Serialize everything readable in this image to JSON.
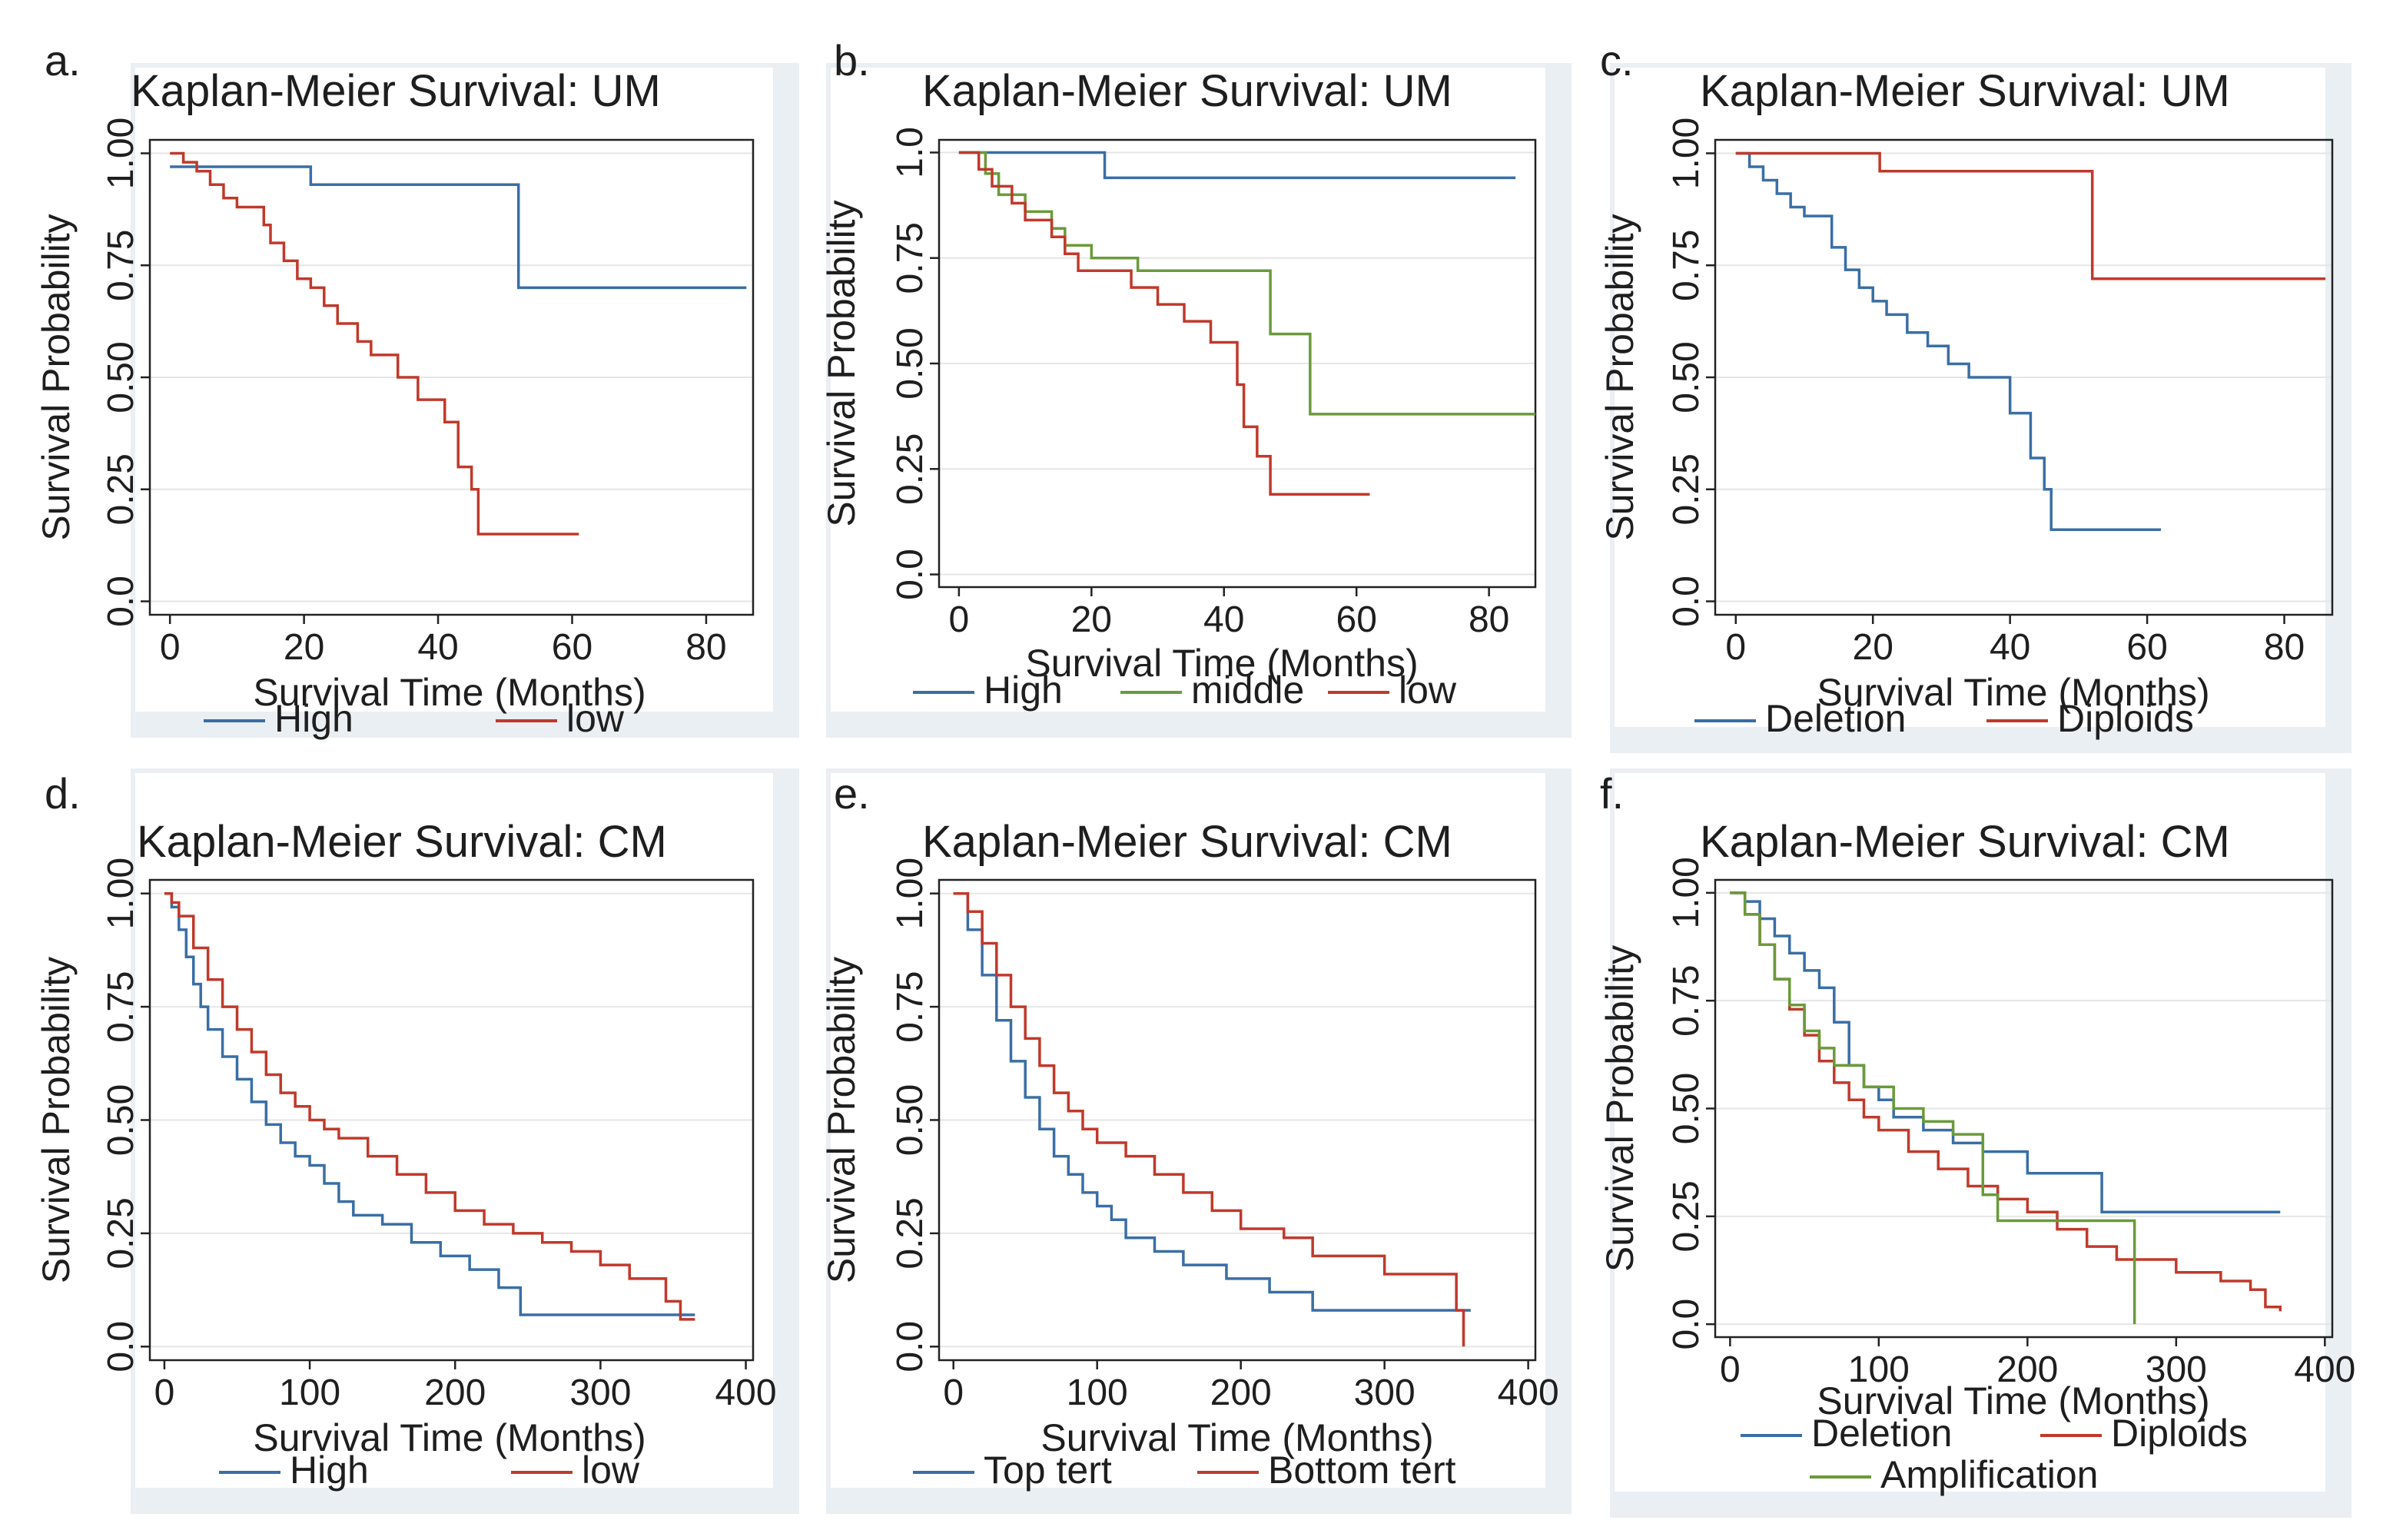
{
  "colors": {
    "blue": "#3a6ea5",
    "red": "#c0392b",
    "green": "#6a9a3a",
    "grid": "#e6e6e6",
    "axis": "#222222",
    "panel_bg": "#e9eff2"
  },
  "chart_data": [
    {
      "id": "a",
      "type": "line",
      "step": true,
      "letter": "a.",
      "title": "Kaplan-Meier Survival: UM",
      "xlabel": "Survival Time (Months)",
      "ylabel": "Survival Probability",
      "xlim": [
        -3,
        87
      ],
      "ylim": [
        -0.03,
        1.03
      ],
      "xticks": [
        0,
        20,
        40,
        60,
        80
      ],
      "xtick_labels": [
        "0",
        "20",
        "40",
        "60",
        "80"
      ],
      "yticks": [
        0,
        0.25,
        0.5,
        0.75,
        1.0
      ],
      "ytick_labels": [
        "0.0",
        "0.25",
        "0.50",
        "0.75",
        "1.00"
      ],
      "grid": true,
      "legend": [
        {
          "name": "High",
          "color": "#3a6ea5"
        },
        {
          "name": "low",
          "color": "#c0392b"
        }
      ],
      "series": [
        {
          "name": "High",
          "color": "#3a6ea5",
          "x": [
            0,
            21,
            52,
            86
          ],
          "y": [
            0.97,
            0.93,
            0.7,
            0.7
          ]
        },
        {
          "name": "low",
          "color": "#c0392b",
          "x": [
            0,
            2,
            4,
            6,
            8,
            10,
            12,
            14,
            15,
            17,
            19,
            21,
            23,
            25,
            28,
            30,
            34,
            37,
            41,
            43,
            45,
            46,
            61
          ],
          "y": [
            1.0,
            0.98,
            0.96,
            0.93,
            0.9,
            0.88,
            0.88,
            0.84,
            0.8,
            0.76,
            0.72,
            0.7,
            0.66,
            0.62,
            0.58,
            0.55,
            0.5,
            0.45,
            0.4,
            0.3,
            0.25,
            0.15,
            0.15
          ]
        }
      ]
    },
    {
      "id": "b",
      "type": "line",
      "step": true,
      "letter": "b.",
      "title": "Kaplan-Meier Survival: UM",
      "xlabel": "Survival Time (Months)",
      "ylabel": "Survival Probability",
      "xlim": [
        -3,
        87
      ],
      "ylim": [
        -0.03,
        1.03
      ],
      "xticks": [
        0,
        20,
        40,
        60,
        80
      ],
      "xtick_labels": [
        "0",
        "20",
        "40",
        "60",
        "80"
      ],
      "yticks": [
        0,
        0.25,
        0.5,
        0.75,
        1.0
      ],
      "ytick_labels": [
        "0.0",
        "0.25",
        "0.50",
        "0.75",
        "1.0"
      ],
      "grid": true,
      "legend": [
        {
          "name": "High",
          "color": "#3a6ea5"
        },
        {
          "name": "middle",
          "color": "#6a9a3a"
        },
        {
          "name": "low",
          "color": "#c0392b"
        }
      ],
      "series": [
        {
          "name": "High",
          "color": "#3a6ea5",
          "x": [
            0,
            22,
            84
          ],
          "y": [
            1.0,
            0.94,
            0.94
          ]
        },
        {
          "name": "middle",
          "color": "#6a9a3a",
          "x": [
            0,
            4,
            6,
            10,
            14,
            16,
            20,
            27,
            31,
            47,
            53,
            87
          ],
          "y": [
            1.0,
            0.95,
            0.9,
            0.86,
            0.82,
            0.78,
            0.75,
            0.72,
            0.72,
            0.57,
            0.38,
            0.38
          ]
        },
        {
          "name": "low",
          "color": "#c0392b",
          "x": [
            0,
            3,
            5,
            8,
            10,
            14,
            16,
            18,
            22,
            26,
            30,
            34,
            38,
            42,
            43,
            45,
            47,
            62
          ],
          "y": [
            1.0,
            0.96,
            0.92,
            0.88,
            0.84,
            0.8,
            0.76,
            0.72,
            0.72,
            0.68,
            0.64,
            0.6,
            0.55,
            0.45,
            0.35,
            0.28,
            0.19,
            0.19
          ]
        }
      ]
    },
    {
      "id": "c",
      "type": "line",
      "step": true,
      "letter": "c.",
      "title": "Kaplan-Meier Survival: UM",
      "xlabel": "Survival Time (Months)",
      "ylabel": "Survival Probability",
      "xlim": [
        -3,
        87
      ],
      "ylim": [
        -0.03,
        1.03
      ],
      "xticks": [
        0,
        20,
        40,
        60,
        80
      ],
      "xtick_labels": [
        "0",
        "20",
        "40",
        "60",
        "80"
      ],
      "yticks": [
        0,
        0.25,
        0.5,
        0.75,
        1.0
      ],
      "ytick_labels": [
        "0.0",
        "0.25",
        "0.50",
        "0.75",
        "1.00"
      ],
      "grid": true,
      "legend": [
        {
          "name": "Deletion",
          "color": "#3a6ea5"
        },
        {
          "name": "Diploids",
          "color": "#c0392b"
        }
      ],
      "series": [
        {
          "name": "Deletion",
          "color": "#3a6ea5",
          "x": [
            0,
            2,
            4,
            6,
            8,
            10,
            14,
            16,
            18,
            20,
            22,
            25,
            28,
            31,
            34,
            40,
            43,
            45,
            46,
            62
          ],
          "y": [
            1.0,
            0.97,
            0.94,
            0.91,
            0.88,
            0.86,
            0.79,
            0.74,
            0.7,
            0.67,
            0.64,
            0.6,
            0.57,
            0.53,
            0.5,
            0.42,
            0.32,
            0.25,
            0.16,
            0.16
          ]
        },
        {
          "name": "Diploids",
          "color": "#c0392b",
          "x": [
            0,
            21,
            52,
            86
          ],
          "y": [
            1.0,
            0.96,
            0.72,
            0.72
          ]
        }
      ]
    },
    {
      "id": "d",
      "type": "line",
      "step": true,
      "letter": "d.",
      "title": "Kaplan-Meier Survival: CM",
      "xlabel": "Survival Time (Months)",
      "ylabel": "Survival Probability",
      "xlim": [
        -10,
        405
      ],
      "ylim": [
        -0.03,
        1.03
      ],
      "xticks": [
        0,
        100,
        200,
        300,
        400
      ],
      "xtick_labels": [
        "0",
        "100",
        "200",
        "300",
        "400"
      ],
      "yticks": [
        0,
        0.25,
        0.5,
        0.75,
        1.0
      ],
      "ytick_labels": [
        "0.0",
        "0.25",
        "0.50",
        "0.75",
        "1.00"
      ],
      "grid": true,
      "legend": [
        {
          "name": "High",
          "color": "#3a6ea5"
        },
        {
          "name": "low",
          "color": "#c0392b"
        }
      ],
      "series": [
        {
          "name": "High",
          "color": "#3a6ea5",
          "x": [
            0,
            5,
            10,
            15,
            20,
            25,
            30,
            40,
            50,
            60,
            70,
            80,
            90,
            100,
            110,
            120,
            130,
            150,
            170,
            190,
            210,
            230,
            245,
            300,
            365
          ],
          "y": [
            1.0,
            0.97,
            0.92,
            0.86,
            0.8,
            0.75,
            0.7,
            0.64,
            0.59,
            0.54,
            0.49,
            0.45,
            0.42,
            0.4,
            0.36,
            0.32,
            0.29,
            0.27,
            0.23,
            0.2,
            0.17,
            0.13,
            0.07,
            0.07,
            0.07
          ]
        },
        {
          "name": "low",
          "color": "#c0392b",
          "x": [
            0,
            5,
            10,
            20,
            30,
            40,
            50,
            60,
            70,
            80,
            90,
            100,
            110,
            120,
            140,
            160,
            180,
            200,
            220,
            240,
            260,
            280,
            300,
            320,
            345,
            355,
            365
          ],
          "y": [
            1.0,
            0.98,
            0.95,
            0.88,
            0.81,
            0.75,
            0.7,
            0.65,
            0.6,
            0.56,
            0.53,
            0.5,
            0.48,
            0.46,
            0.42,
            0.38,
            0.34,
            0.3,
            0.27,
            0.25,
            0.23,
            0.21,
            0.18,
            0.15,
            0.1,
            0.06,
            0.06
          ]
        }
      ]
    },
    {
      "id": "e",
      "type": "line",
      "step": true,
      "letter": "e.",
      "title": "Kaplan-Meier Survival: CM",
      "xlabel": "Survival Time (Months)",
      "ylabel": "Survival Probability",
      "xlim": [
        -10,
        405
      ],
      "ylim": [
        -0.03,
        1.03
      ],
      "xticks": [
        0,
        100,
        200,
        300,
        400
      ],
      "xtick_labels": [
        "0",
        "100",
        "200",
        "300",
        "400"
      ],
      "yticks": [
        0,
        0.25,
        0.5,
        0.75,
        1.0
      ],
      "ytick_labels": [
        "0.0",
        "0.25",
        "0.50",
        "0.75",
        "1.00"
      ],
      "grid": true,
      "legend": [
        {
          "name": "Top tert",
          "color": "#3a6ea5"
        },
        {
          "name": "Bottom tert",
          "color": "#c0392b"
        }
      ],
      "series": [
        {
          "name": "Top tert",
          "color": "#3a6ea5",
          "x": [
            0,
            10,
            20,
            30,
            40,
            50,
            60,
            70,
            80,
            90,
            100,
            110,
            120,
            140,
            160,
            190,
            220,
            250,
            300,
            360
          ],
          "y": [
            1.0,
            0.92,
            0.82,
            0.72,
            0.63,
            0.55,
            0.48,
            0.42,
            0.38,
            0.34,
            0.31,
            0.28,
            0.24,
            0.21,
            0.18,
            0.15,
            0.12,
            0.08,
            0.08,
            0.08
          ]
        },
        {
          "name": "Bottom tert",
          "color": "#c0392b",
          "x": [
            0,
            10,
            20,
            30,
            40,
            50,
            60,
            70,
            80,
            90,
            100,
            120,
            140,
            160,
            180,
            200,
            230,
            250,
            300,
            350,
            355
          ],
          "y": [
            1.0,
            0.96,
            0.89,
            0.82,
            0.75,
            0.68,
            0.62,
            0.56,
            0.52,
            0.48,
            0.45,
            0.42,
            0.38,
            0.34,
            0.3,
            0.26,
            0.24,
            0.2,
            0.16,
            0.08,
            0.0
          ]
        }
      ]
    },
    {
      "id": "f",
      "type": "line",
      "step": true,
      "letter": "f.",
      "title": "Kaplan-Meier Survival: CM",
      "xlabel": "Survival Time (Months)",
      "ylabel": "Survival Probability",
      "xlim": [
        -10,
        405
      ],
      "ylim": [
        -0.03,
        1.03
      ],
      "xticks": [
        0,
        100,
        200,
        300,
        400
      ],
      "xtick_labels": [
        "0",
        "100",
        "200",
        "300",
        "400"
      ],
      "yticks": [
        0,
        0.25,
        0.5,
        0.75,
        1.0
      ],
      "ytick_labels": [
        "0.0",
        "0.25",
        "0.50",
        "0.75",
        "1.00"
      ],
      "grid": true,
      "legend": [
        {
          "name": "Deletion",
          "color": "#3a6ea5"
        },
        {
          "name": "Diploids",
          "color": "#c0392b"
        },
        {
          "name": "Amplification",
          "color": "#6a9a3a"
        }
      ],
      "series": [
        {
          "name": "Deletion",
          "color": "#3a6ea5",
          "x": [
            0,
            10,
            20,
            30,
            40,
            50,
            60,
            70,
            80,
            90,
            100,
            110,
            130,
            150,
            170,
            200,
            250,
            370
          ],
          "y": [
            1.0,
            0.98,
            0.94,
            0.9,
            0.86,
            0.82,
            0.78,
            0.7,
            0.6,
            0.55,
            0.52,
            0.48,
            0.45,
            0.42,
            0.4,
            0.35,
            0.26,
            0.26
          ]
        },
        {
          "name": "Diploids",
          "color": "#c0392b",
          "x": [
            0,
            10,
            20,
            30,
            40,
            50,
            60,
            70,
            80,
            90,
            100,
            120,
            140,
            160,
            180,
            200,
            220,
            240,
            260,
            300,
            330,
            350,
            360,
            370
          ],
          "y": [
            1.0,
            0.95,
            0.88,
            0.8,
            0.73,
            0.67,
            0.61,
            0.56,
            0.52,
            0.48,
            0.45,
            0.4,
            0.36,
            0.32,
            0.29,
            0.26,
            0.22,
            0.18,
            0.15,
            0.12,
            0.1,
            0.08,
            0.04,
            0.03
          ]
        },
        {
          "name": "Amplification",
          "color": "#6a9a3a",
          "x": [
            0,
            10,
            20,
            30,
            40,
            50,
            60,
            70,
            90,
            110,
            130,
            150,
            170,
            180,
            270,
            272
          ],
          "y": [
            1.0,
            0.95,
            0.88,
            0.8,
            0.74,
            0.68,
            0.64,
            0.6,
            0.55,
            0.5,
            0.47,
            0.44,
            0.3,
            0.24,
            0.24,
            0.0
          ]
        }
      ]
    }
  ]
}
